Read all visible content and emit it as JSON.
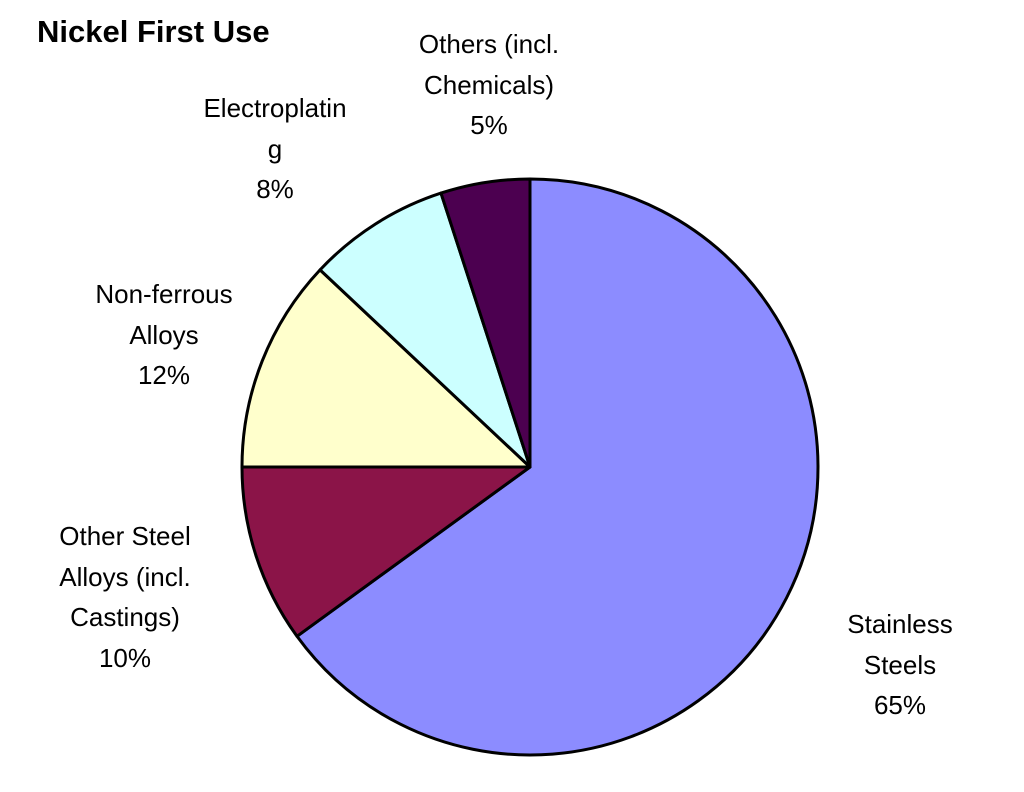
{
  "chart_data": {
    "type": "pie",
    "title": "Nickel First Use",
    "slices": [
      {
        "key": "stainless-steels",
        "label_lines": [
          "Stainless",
          "Steels"
        ],
        "value": 65,
        "value_label": "65%",
        "color": "#8C8CFF"
      },
      {
        "key": "other-steel-alloys",
        "label_lines": [
          "Other Steel",
          "Alloys (incl.",
          "Castings)"
        ],
        "value": 10,
        "value_label": "10%",
        "color": "#8B1448"
      },
      {
        "key": "non-ferrous-alloys",
        "label_lines": [
          "Non-ferrous",
          "Alloys"
        ],
        "value": 12,
        "value_label": "12%",
        "color": "#FFFFCC"
      },
      {
        "key": "electroplating",
        "label_lines": [
          "Electroplatin",
          "g"
        ],
        "value": 8,
        "value_label": "8%",
        "color": "#CCFFFF"
      },
      {
        "key": "others",
        "label_lines": [
          "Others (incl.",
          "Chemicals)"
        ],
        "value": 5,
        "value_label": "5%",
        "color": "#4C0050"
      }
    ],
    "slice_order": "clockwise from 12 o'clock",
    "legend": "none",
    "labels": "outside slices"
  }
}
